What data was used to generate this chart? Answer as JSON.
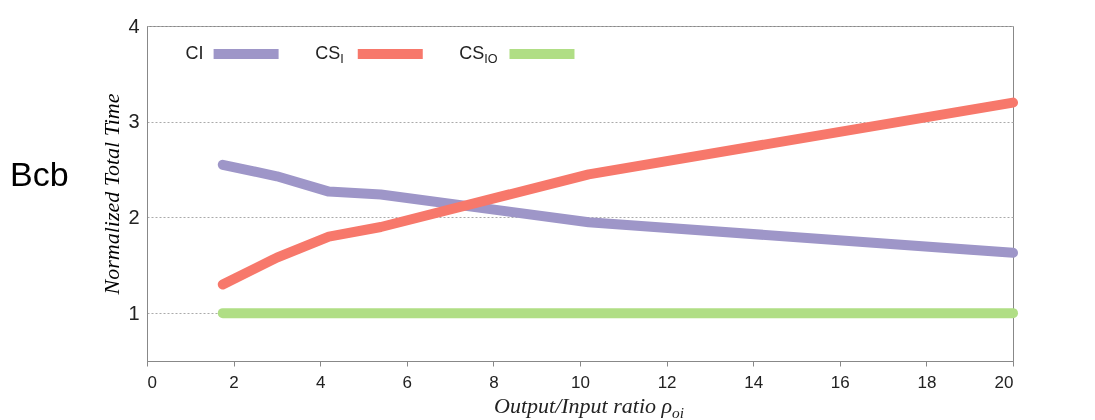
{
  "chart_data": {
    "type": "line",
    "xlabel": "Output/Input ratio ρ$_{oi}$",
    "ylabel": "Normalized Total Time",
    "annotations": [
      "Bcb"
    ],
    "xlim": [
      0,
      20
    ],
    "xticks": [
      0,
      2,
      4,
      6,
      8,
      10,
      12,
      14,
      16,
      18,
      20
    ],
    "ylim": [
      0.5,
      4
    ],
    "yticks": [
      1,
      2,
      3,
      4
    ],
    "grid": "y",
    "legend": "top left",
    "marker": "none",
    "line_style": "solid",
    "series": [
      {
        "name": "CI",
        "color": "#9e96c8",
        "x": [
          1.75,
          3,
          4.2,
          5.4,
          10.2,
          20
        ],
        "values": [
          2.55,
          2.43,
          2.27,
          2.24,
          1.95,
          1.63
        ]
      },
      {
        "name": "CS$_{I}$",
        "color": "#f7786b",
        "x": [
          1.75,
          3,
          4.2,
          5.4,
          10.2,
          20
        ],
        "values": [
          1.3,
          1.58,
          1.8,
          1.9,
          2.45,
          3.2
        ]
      },
      {
        "name": "CS$_{IO}$",
        "color": "#b0de85",
        "x": [
          1.75,
          3,
          4.2,
          5.4,
          10.2,
          20
        ],
        "values": [
          1,
          1,
          1,
          1,
          1,
          1
        ]
      }
    ]
  }
}
